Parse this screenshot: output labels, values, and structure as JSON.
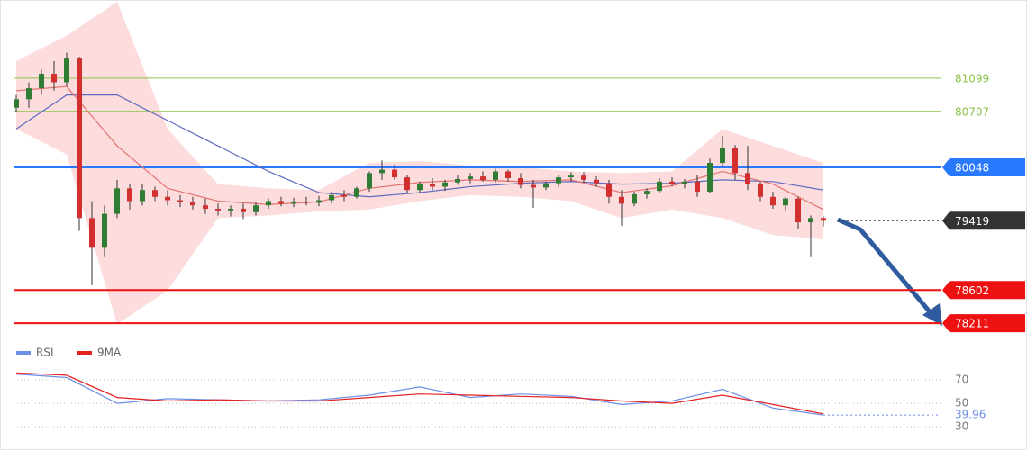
{
  "chart_data": [
    {
      "type": "candlestick",
      "ylim": [
        77990,
        82020
      ],
      "up_color": "#2e7d32",
      "down_color": "#d32f2f",
      "ohlc": [
        [
          80750,
          80900,
          80700,
          80850
        ],
        [
          80850,
          81050,
          80750,
          80980
        ],
        [
          80980,
          81200,
          80900,
          81150
        ],
        [
          81150,
          81300,
          80950,
          81050
        ],
        [
          81050,
          81400,
          81000,
          81330
        ],
        [
          81330,
          81350,
          79300,
          79450
        ],
        [
          79450,
          79650,
          78660,
          79100
        ],
        [
          79100,
          79600,
          79000,
          79500
        ],
        [
          79500,
          79900,
          79450,
          79800
        ],
        [
          79800,
          79850,
          79550,
          79650
        ],
        [
          79650,
          79850,
          79600,
          79780
        ],
        [
          79780,
          79820,
          79650,
          79700
        ],
        [
          79700,
          79780,
          79600,
          79660
        ],
        [
          79660,
          79720,
          79580,
          79640
        ],
        [
          79640,
          79700,
          79550,
          79600
        ],
        [
          79600,
          79680,
          79500,
          79560
        ],
        [
          79560,
          79620,
          79480,
          79540
        ],
        [
          79540,
          79600,
          79470,
          79560
        ],
        [
          79560,
          79620,
          79440,
          79520
        ],
        [
          79520,
          79640,
          79480,
          79600
        ],
        [
          79600,
          79680,
          79560,
          79650
        ],
        [
          79650,
          79700,
          79590,
          79620
        ],
        [
          79620,
          79690,
          79580,
          79640
        ],
        [
          79640,
          79700,
          79600,
          79630
        ],
        [
          79630,
          79710,
          79590,
          79660
        ],
        [
          79660,
          79760,
          79620,
          79720
        ],
        [
          79720,
          79780,
          79650,
          79700
        ],
        [
          79700,
          79820,
          79680,
          79800
        ],
        [
          79800,
          80000,
          79760,
          79980
        ],
        [
          79980,
          80130,
          79900,
          80020
        ],
        [
          80020,
          80080,
          79900,
          79930
        ],
        [
          79930,
          79960,
          79740,
          79780
        ],
        [
          79780,
          79880,
          79740,
          79850
        ],
        [
          79850,
          79920,
          79780,
          79820
        ],
        [
          79820,
          79900,
          79770,
          79870
        ],
        [
          79870,
          79950,
          79840,
          79910
        ],
        [
          79910,
          79980,
          79860,
          79940
        ],
        [
          79940,
          80000,
          79880,
          79900
        ],
        [
          79900,
          80030,
          79870,
          80000
        ],
        [
          80000,
          80020,
          79880,
          79920
        ],
        [
          79920,
          79980,
          79800,
          79840
        ],
        [
          79840,
          79900,
          79570,
          79810
        ],
        [
          79810,
          79880,
          79780,
          79860
        ],
        [
          79860,
          79960,
          79820,
          79930
        ],
        [
          79930,
          79990,
          79880,
          79950
        ],
        [
          79950,
          79990,
          79870,
          79900
        ],
        [
          79900,
          79940,
          79820,
          79860
        ],
        [
          79860,
          79900,
          79620,
          79700
        ],
        [
          79700,
          79780,
          79360,
          79620
        ],
        [
          79620,
          79760,
          79590,
          79730
        ],
        [
          79730,
          79800,
          79680,
          79770
        ],
        [
          79770,
          79920,
          79740,
          79880
        ],
        [
          79880,
          79930,
          79830,
          79850
        ],
        [
          79850,
          79910,
          79800,
          79880
        ],
        [
          79880,
          79960,
          79700,
          79760
        ],
        [
          79760,
          80150,
          79740,
          80100
        ],
        [
          80100,
          80420,
          80050,
          80280
        ],
        [
          80280,
          80310,
          79900,
          79980
        ],
        [
          79980,
          80300,
          79780,
          79850
        ],
        [
          79850,
          79880,
          79650,
          79700
        ],
        [
          79700,
          79760,
          79560,
          79600
        ],
        [
          79600,
          79700,
          79540,
          79680
        ],
        [
          79680,
          79700,
          79320,
          79400
        ],
        [
          79400,
          79480,
          79000,
          79450
        ],
        [
          79450,
          79470,
          79350,
          79419
        ]
      ],
      "overlay_x": [
        0,
        4,
        8,
        12,
        16,
        20,
        24,
        28,
        32,
        36,
        40,
        44,
        48,
        52,
        56,
        60,
        64
      ],
      "band": {
        "color": "#fbd3d3",
        "upper": [
          81300,
          81600,
          82000,
          80500,
          79850,
          79800,
          79780,
          80100,
          80120,
          80070,
          80050,
          80000,
          79980,
          80000,
          80500,
          80300,
          80100
        ],
        "lower": [
          80500,
          80200,
          78200,
          78600,
          79450,
          79480,
          79530,
          79550,
          79650,
          79720,
          79700,
          79650,
          79450,
          79550,
          79450,
          79250,
          79200
        ]
      },
      "ma": [
        {
          "color": "#5c6bc0",
          "values": [
            80500,
            80900,
            80900,
            80600,
            80300,
            80000,
            79750,
            79700,
            79750,
            79820,
            79860,
            79880,
            79850,
            79860,
            79900,
            79880,
            79780
          ]
        },
        {
          "color": "#e57373",
          "values": [
            80950,
            81000,
            80300,
            79800,
            79650,
            79610,
            79640,
            79800,
            79870,
            79900,
            79880,
            79900,
            79750,
            79830,
            80000,
            79850,
            79550
          ]
        }
      ],
      "levels": [
        {
          "value": 81099,
          "color": "#8bc34a",
          "box": false
        },
        {
          "value": 80707,
          "color": "#8bc34a",
          "box": false
        },
        {
          "value": 80048,
          "color": "#2979ff",
          "box": true
        },
        {
          "value": 79419,
          "color": "#333333",
          "box": true,
          "dotted": true
        },
        {
          "value": 78602,
          "color": "#ee1111",
          "box": true
        },
        {
          "value": 78211,
          "color": "#ee1111",
          "box": true
        }
      ]
    },
    {
      "type": "line",
      "ylim": [
        17,
        87
      ],
      "yticks": [
        70,
        50,
        30
      ],
      "x": [
        0,
        4,
        8,
        12,
        16,
        20,
        24,
        28,
        32,
        36,
        40,
        44,
        48,
        52,
        56,
        60,
        64
      ],
      "series": [
        {
          "name": "RSI",
          "color": "#6b8ee8",
          "values": [
            75,
            72,
            50,
            54,
            53,
            52,
            53,
            57,
            64,
            55,
            58,
            56,
            49,
            52,
            62,
            46,
            39.96
          ]
        },
        {
          "name": "9MA",
          "color": "#e52020",
          "values": [
            76,
            74,
            55,
            52,
            53,
            52,
            52,
            55,
            58,
            57,
            56,
            55,
            52,
            50,
            57,
            49,
            41
          ]
        }
      ]
    }
  ]
}
